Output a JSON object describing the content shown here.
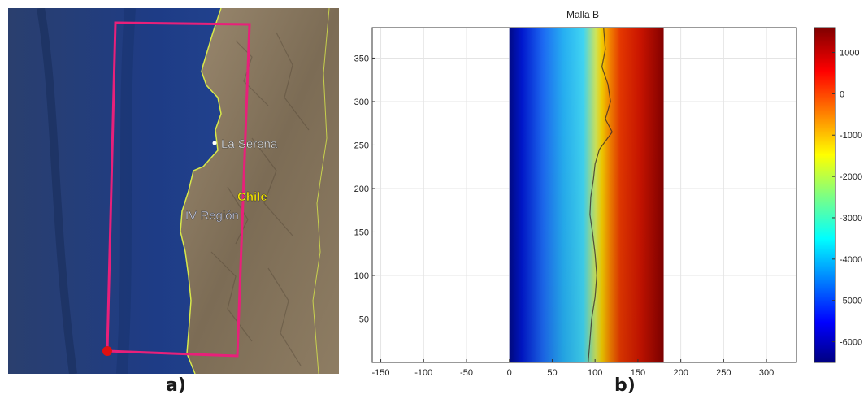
{
  "panel_a": {
    "caption": "a)",
    "map_labels": {
      "city": "La Serena",
      "country": "Chile",
      "region": "IV Región"
    },
    "colors": {
      "box": "#e8207a",
      "coast": "#d8e84a",
      "ocean": "#1f3f86",
      "land": "#8b7a62",
      "marker": "#e01010"
    }
  },
  "panel_b": {
    "caption": "b)",
    "chart_data": {
      "type": "heatmap",
      "title": "Malla B",
      "xlim": [
        -160,
        335
      ],
      "ylim": [
        0,
        385
      ],
      "xticks": [
        -150,
        -100,
        -50,
        0,
        50,
        100,
        150,
        200,
        250,
        300
      ],
      "yticks": [
        50,
        100,
        150,
        200,
        250,
        300,
        350
      ],
      "data_extent_x": [
        0,
        180
      ],
      "colorbar": {
        "min": -6500,
        "max": 1600,
        "ticks": [
          1000,
          0,
          -1000,
          -2000,
          -3000,
          -4000,
          -5000,
          -6000
        ]
      },
      "colormap": "jet",
      "grid": true
    }
  }
}
